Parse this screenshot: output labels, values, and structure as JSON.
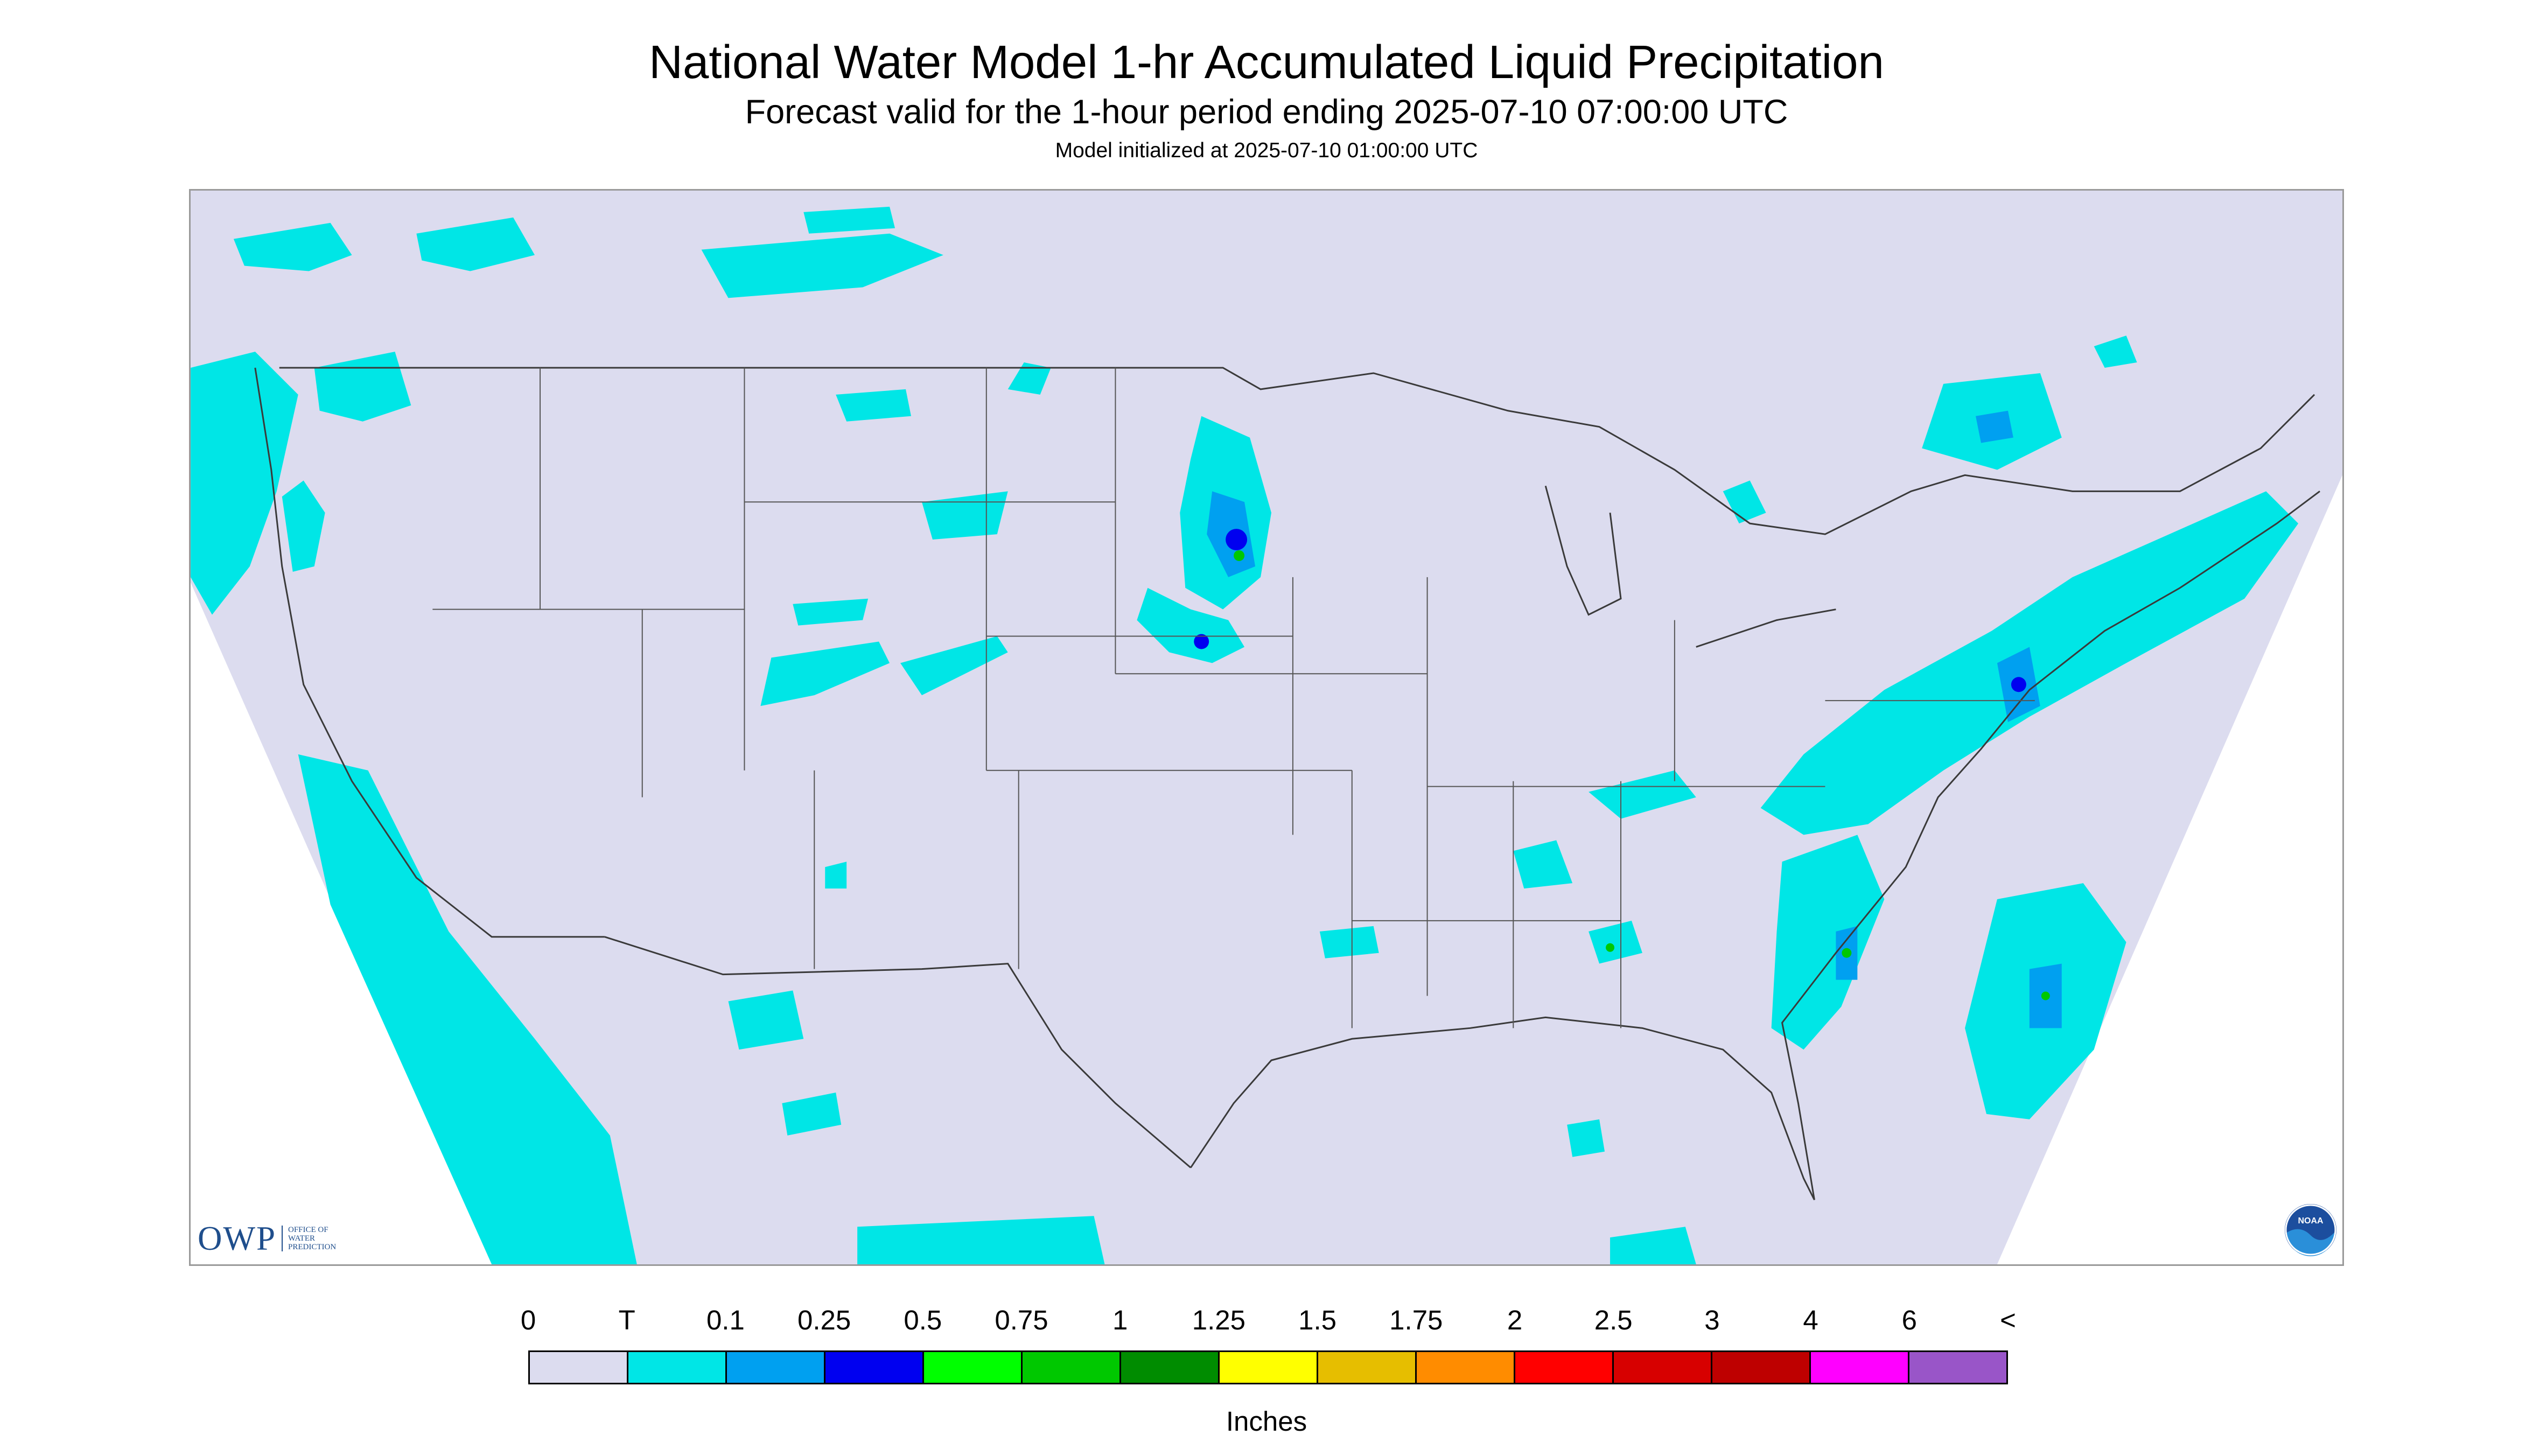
{
  "titles": {
    "main": "National Water Model 1-hr Accumulated Liquid Precipitation",
    "subtitle": "Forecast valid for the 1-hour period ending 2025-07-10 07:00:00 UTC",
    "init": "Model initialized at 2025-07-10 01:00:00 UTC"
  },
  "logos": {
    "owp_text": "OWP",
    "owp_sub": [
      "OFFICE OF",
      "WATER",
      "PREDICTION"
    ],
    "noaa_text": "NOAA"
  },
  "legend": {
    "labels": [
      "0",
      "T",
      "0.1",
      "0.25",
      "0.5",
      "0.75",
      "1",
      "1.25",
      "1.5",
      "1.75",
      "2",
      "2.5",
      "3",
      "4",
      "6",
      "<"
    ],
    "colors": [
      "#dcdcef",
      "#00e6e6",
      "#00a0f0",
      "#0000f0",
      "#00ff00",
      "#00c800",
      "#008c00",
      "#ffff00",
      "#e6be00",
      "#ff8c00",
      "#ff0000",
      "#d70000",
      "#be0000",
      "#ff00ff",
      "#9955c8"
    ],
    "units": "Inches"
  },
  "map_colors": {
    "background": "#dcdcef",
    "trace": "#00e6e6",
    "light": "#00a0f0",
    "moderate": "#0000f0",
    "heavy": "#00c800",
    "border": "#3a3a3a"
  }
}
